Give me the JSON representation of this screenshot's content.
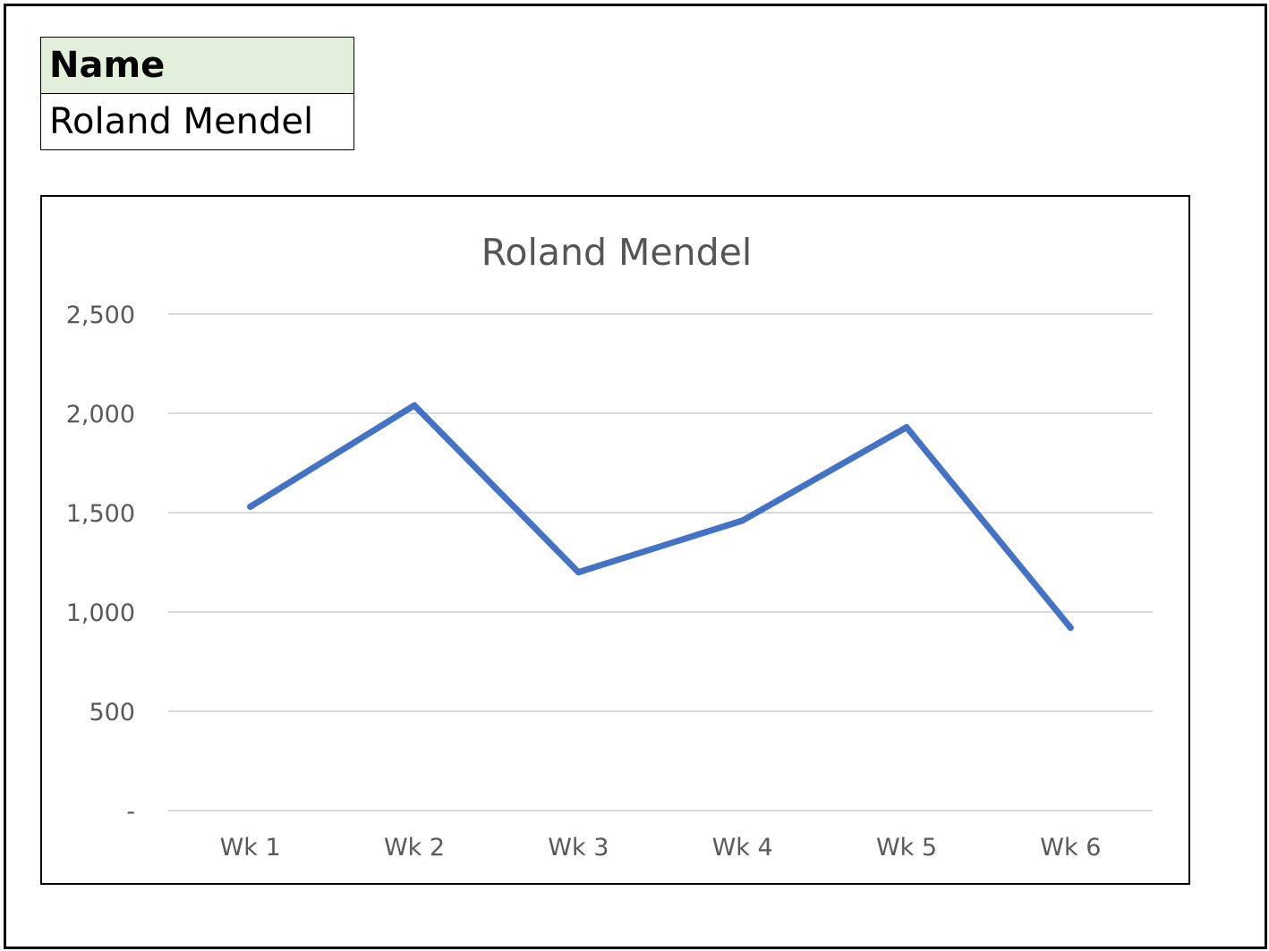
{
  "table": {
    "header": "Name",
    "value": "Roland Mendel"
  },
  "chart_data": {
    "type": "line",
    "title": "Roland Mendel",
    "xlabel": "",
    "ylabel": "",
    "categories": [
      "Wk 1",
      "Wk 2",
      "Wk 3",
      "Wk 4",
      "Wk 5",
      "Wk 6"
    ],
    "series": [
      {
        "values": [
          1530,
          2040,
          1200,
          1460,
          1930,
          920
        ]
      }
    ],
    "ylim": [
      0,
      2500
    ],
    "y_ticks": [
      0,
      500,
      1000,
      1500,
      2000,
      2500
    ],
    "y_tick_labels": [
      "-",
      "500",
      "1,000",
      "1,500",
      "2,000",
      "2,500"
    ],
    "grid": true,
    "legend": "none",
    "line_color": "#4472c4",
    "grid_color": "#d9d9d9"
  }
}
